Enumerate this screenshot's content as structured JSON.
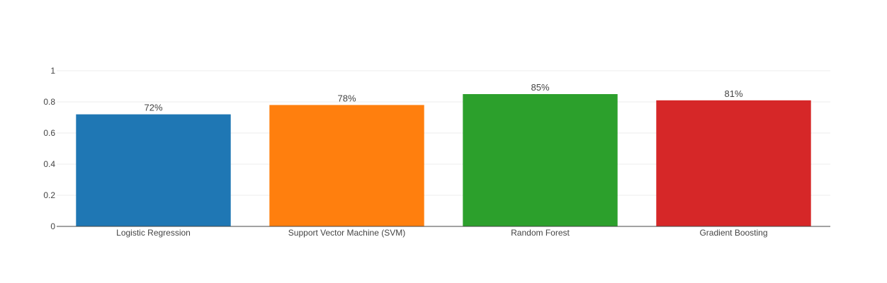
{
  "chart_data": {
    "type": "bar",
    "categories": [
      "Logistic Regression",
      "Support Vector Machine (SVM)",
      "Random Forest",
      "Gradient Boosting"
    ],
    "values": [
      0.72,
      0.78,
      0.85,
      0.81
    ],
    "data_labels": [
      "72%",
      "78%",
      "85%",
      "81%"
    ],
    "colors": [
      "#1f77b4",
      "#ff7f0e",
      "#2ca02c",
      "#d62728"
    ],
    "ylim": [
      0,
      1
    ],
    "yticks": [
      0,
      0.2,
      0.4,
      0.6,
      0.8,
      1
    ],
    "ytick_labels": [
      "0",
      "0.2",
      "0.4",
      "0.6",
      "0.8",
      "1"
    ],
    "grid": true,
    "title": "",
    "xlabel": "",
    "ylabel": ""
  }
}
